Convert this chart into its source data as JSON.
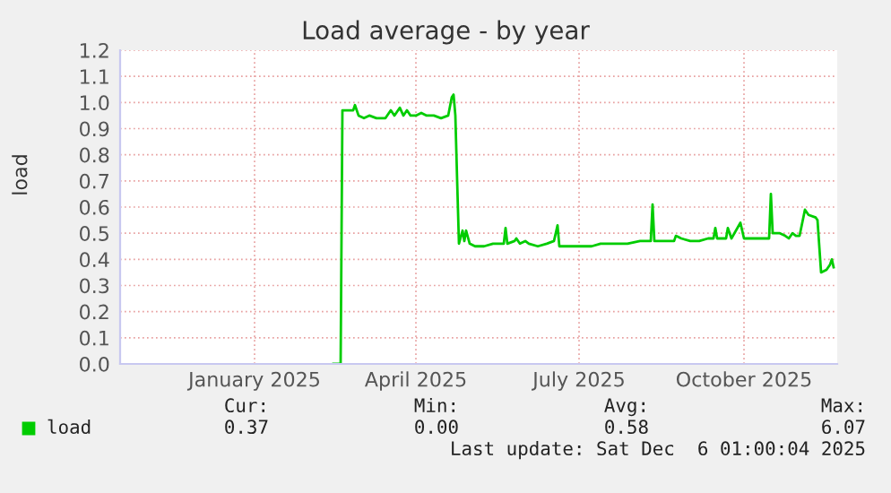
{
  "chart_data": {
    "type": "line",
    "title": "Load average - by year",
    "ylabel": "load",
    "xlim": [
      "2024-11-01",
      "2025-12-06"
    ],
    "xticks": [
      {
        "value": "2025-01-15",
        "label": "January 2025"
      },
      {
        "value": "2025-04-15",
        "label": "April 2025"
      },
      {
        "value": "2025-07-15",
        "label": "July 2025"
      },
      {
        "value": "2025-10-15",
        "label": "October 2025"
      }
    ],
    "ylim": [
      0,
      1.2
    ],
    "yticks": [
      {
        "value": 0,
        "label": "0.0"
      },
      0.1,
      0.2,
      0.3,
      0.4,
      0.5,
      0.6,
      0.7,
      0.8,
      0.9,
      {
        "value": 1,
        "label": "1.0"
      },
      1.1,
      1.2
    ],
    "grid": true,
    "legend": "bottom",
    "marker": "none",
    "line_style": "solid",
    "series": [
      {
        "name": "load",
        "color": "#00cc00",
        "x": [
          "2025-02-28",
          "2025-03-04",
          "2025-03-05",
          "2025-03-11",
          "2025-03-12",
          "2025-03-14",
          "2025-03-17",
          "2025-03-20",
          "2025-03-24",
          "2025-03-29",
          "2025-04-01",
          "2025-04-03",
          "2025-04-06",
          "2025-04-08",
          "2025-04-10",
          "2025-04-12",
          "2025-04-15",
          "2025-04-18",
          "2025-04-21",
          "2025-04-25",
          "2025-04-29",
          "2025-05-03",
          "2025-05-05",
          "2025-05-06",
          "2025-05-07",
          "2025-05-08",
          "2025-05-09",
          "2025-05-11",
          "2025-05-12",
          "2025-05-13",
          "2025-05-15",
          "2025-05-18",
          "2025-05-23",
          "2025-05-28",
          "2025-06-03",
          "2025-06-04",
          "2025-06-05",
          "2025-06-09",
          "2025-06-10",
          "2025-06-12",
          "2025-06-15",
          "2025-06-17",
          "2025-06-22",
          "2025-06-27",
          "2025-07-01",
          "2025-07-03",
          "2025-07-04",
          "2025-07-12",
          "2025-07-22",
          "2025-07-27",
          "2025-08-06",
          "2025-08-11",
          "2025-08-18",
          "2025-08-24",
          "2025-08-25",
          "2025-08-26",
          "2025-08-31",
          "2025-09-06",
          "2025-09-07",
          "2025-09-10",
          "2025-09-15",
          "2025-09-20",
          "2025-09-25",
          "2025-09-28",
          "2025-09-29",
          "2025-09-30",
          "2025-10-05",
          "2025-10-06",
          "2025-10-08",
          "2025-10-13",
          "2025-10-15",
          "2025-10-20",
          "2025-10-25",
          "2025-10-29",
          "2025-10-30",
          "2025-10-31",
          "2025-11-04",
          "2025-11-07",
          "2025-11-09",
          "2025-11-11",
          "2025-11-13",
          "2025-11-15",
          "2025-11-18",
          "2025-11-20",
          "2025-11-24",
          "2025-11-25",
          "2025-11-27",
          "2025-11-30",
          "2025-12-02",
          "2025-12-03",
          "2025-12-04"
        ],
        "values": [
          0,
          0,
          0.97,
          0.97,
          0.99,
          0.95,
          0.94,
          0.95,
          0.94,
          0.94,
          0.97,
          0.95,
          0.98,
          0.95,
          0.97,
          0.95,
          0.95,
          0.96,
          0.95,
          0.95,
          0.94,
          0.95,
          1.02,
          1.03,
          0.95,
          0.7,
          0.46,
          0.51,
          0.47,
          0.51,
          0.46,
          0.45,
          0.45,
          0.46,
          0.46,
          0.52,
          0.46,
          0.47,
          0.48,
          0.46,
          0.47,
          0.46,
          0.45,
          0.46,
          0.47,
          0.53,
          0.45,
          0.45,
          0.45,
          0.46,
          0.46,
          0.46,
          0.47,
          0.47,
          0.61,
          0.47,
          0.47,
          0.47,
          0.49,
          0.48,
          0.47,
          0.47,
          0.48,
          0.48,
          0.52,
          0.48,
          0.48,
          0.52,
          0.48,
          0.54,
          0.48,
          0.48,
          0.48,
          0.48,
          0.65,
          0.5,
          0.5,
          0.49,
          0.48,
          0.5,
          0.49,
          0.49,
          0.59,
          0.57,
          0.56,
          0.55,
          0.35,
          0.36,
          0.38,
          0.4,
          0.37
        ]
      }
    ],
    "annotations": [
      "Cur:",
      "Min:",
      "Avg:",
      "Max:",
      "0.37",
      "0.00",
      "0.58",
      "6.07",
      "Last update: Sat Dec  6 01:00:04 2025"
    ]
  }
}
